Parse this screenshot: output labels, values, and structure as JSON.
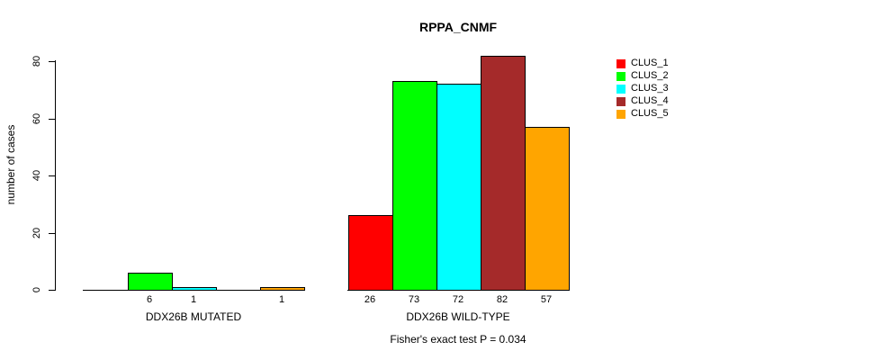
{
  "title": "RPPA_CNMF",
  "footer": "Fisher's exact test P = 0.034",
  "chart_data": {
    "type": "bar",
    "title": "RPPA_CNMF",
    "xlabel": "",
    "ylabel": "number of cases",
    "ylim": [
      0,
      80
    ],
    "yticks": [
      0,
      20,
      40,
      60,
      80
    ],
    "grid": false,
    "legend_position": "top-right",
    "legend_entries": [
      "CLUS_1",
      "CLUS_2",
      "CLUS_3",
      "CLUS_4",
      "CLUS_5"
    ],
    "series_colors": [
      "#FF0000",
      "#00FF00",
      "#00FFFF",
      "#A52A2A",
      "#FFA500"
    ],
    "groups": [
      {
        "label": "DDX26B MUTATED",
        "values": [
          0,
          6,
          1,
          0,
          1
        ],
        "bar_labels": [
          "",
          "6",
          "1",
          "",
          "1"
        ]
      },
      {
        "label": "DDX26B WILD-TYPE",
        "values": [
          26,
          73,
          72,
          82,
          57
        ],
        "bar_labels": [
          "26",
          "73",
          "72",
          "82",
          "57"
        ]
      }
    ],
    "annotation": "Fisher's exact test P = 0.034"
  }
}
